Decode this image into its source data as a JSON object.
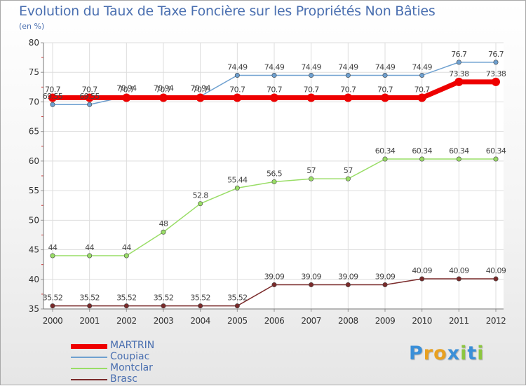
{
  "chart_data": {
    "type": "line",
    "title": "Evolution du Taux de Taxe Foncière sur les Propriétés Non Bâties",
    "ylabel": "(en %)",
    "xlabel": "",
    "ylim": [
      35,
      80
    ],
    "y_ticks": [
      35,
      40,
      45,
      50,
      55,
      60,
      65,
      70,
      75,
      80
    ],
    "categories": [
      "2000",
      "2001",
      "2002",
      "2003",
      "2004",
      "2005",
      "2006",
      "2007",
      "2008",
      "2009",
      "2010",
      "2011",
      "2012"
    ],
    "series": [
      {
        "name": "MARTRIN",
        "color": "#ee0000",
        "values": [
          70.7,
          70.7,
          70.7,
          70.7,
          70.7,
          70.7,
          70.7,
          70.7,
          70.7,
          70.7,
          70.7,
          73.38,
          73.38
        ],
        "labels": [
          "70.7",
          "70.7",
          "70.7",
          "70.7",
          "70.7",
          "70.7",
          "70.7",
          "70.7",
          "70.7",
          "70.7",
          "70.7",
          "73.38",
          "73.38"
        ]
      },
      {
        "name": "Coupiac",
        "color": "#6ea0d0",
        "values": [
          69.55,
          69.55,
          70.94,
          70.94,
          70.94,
          74.49,
          74.49,
          74.49,
          74.49,
          74.49,
          74.49,
          76.7,
          76.7
        ],
        "labels": [
          "69.55",
          "69.55",
          "70.94",
          "70.94",
          "70.94",
          "74.49",
          "74.49",
          "74.49",
          "74.49",
          "74.49",
          "74.49",
          "76.7",
          "76.7"
        ]
      },
      {
        "name": "Montclar",
        "color": "#99dd66",
        "values": [
          44,
          44,
          44,
          48,
          52.8,
          55.44,
          56.5,
          57,
          57,
          60.34,
          60.34,
          60.34,
          60.34
        ],
        "labels": [
          "44",
          "44",
          "44",
          "48",
          "52.8",
          "55.44",
          "56.5",
          "57",
          "57",
          "60.34",
          "60.34",
          "60.34",
          "60.34"
        ]
      },
      {
        "name": "Brasc",
        "color": "#7a2a2a",
        "values": [
          35.52,
          35.52,
          35.52,
          35.52,
          35.52,
          35.52,
          39.09,
          39.09,
          39.09,
          39.09,
          40.09,
          40.09,
          40.09
        ],
        "labels": [
          "35.52",
          "35.52",
          "35.52",
          "35.52",
          "35.52",
          "35.52",
          "39.09",
          "39.09",
          "39.09",
          "39.09",
          "40.09",
          "40.09",
          "40.09"
        ]
      }
    ]
  },
  "logo": {
    "letters": [
      "P",
      "r",
      "o",
      "x",
      "i",
      "t",
      "i"
    ],
    "colors": [
      "#3a8fd8",
      "#e8a020",
      "#e8a020",
      "#3a8fd8",
      "#8cc63f",
      "#3a8fd8",
      "#8cc63f"
    ]
  }
}
